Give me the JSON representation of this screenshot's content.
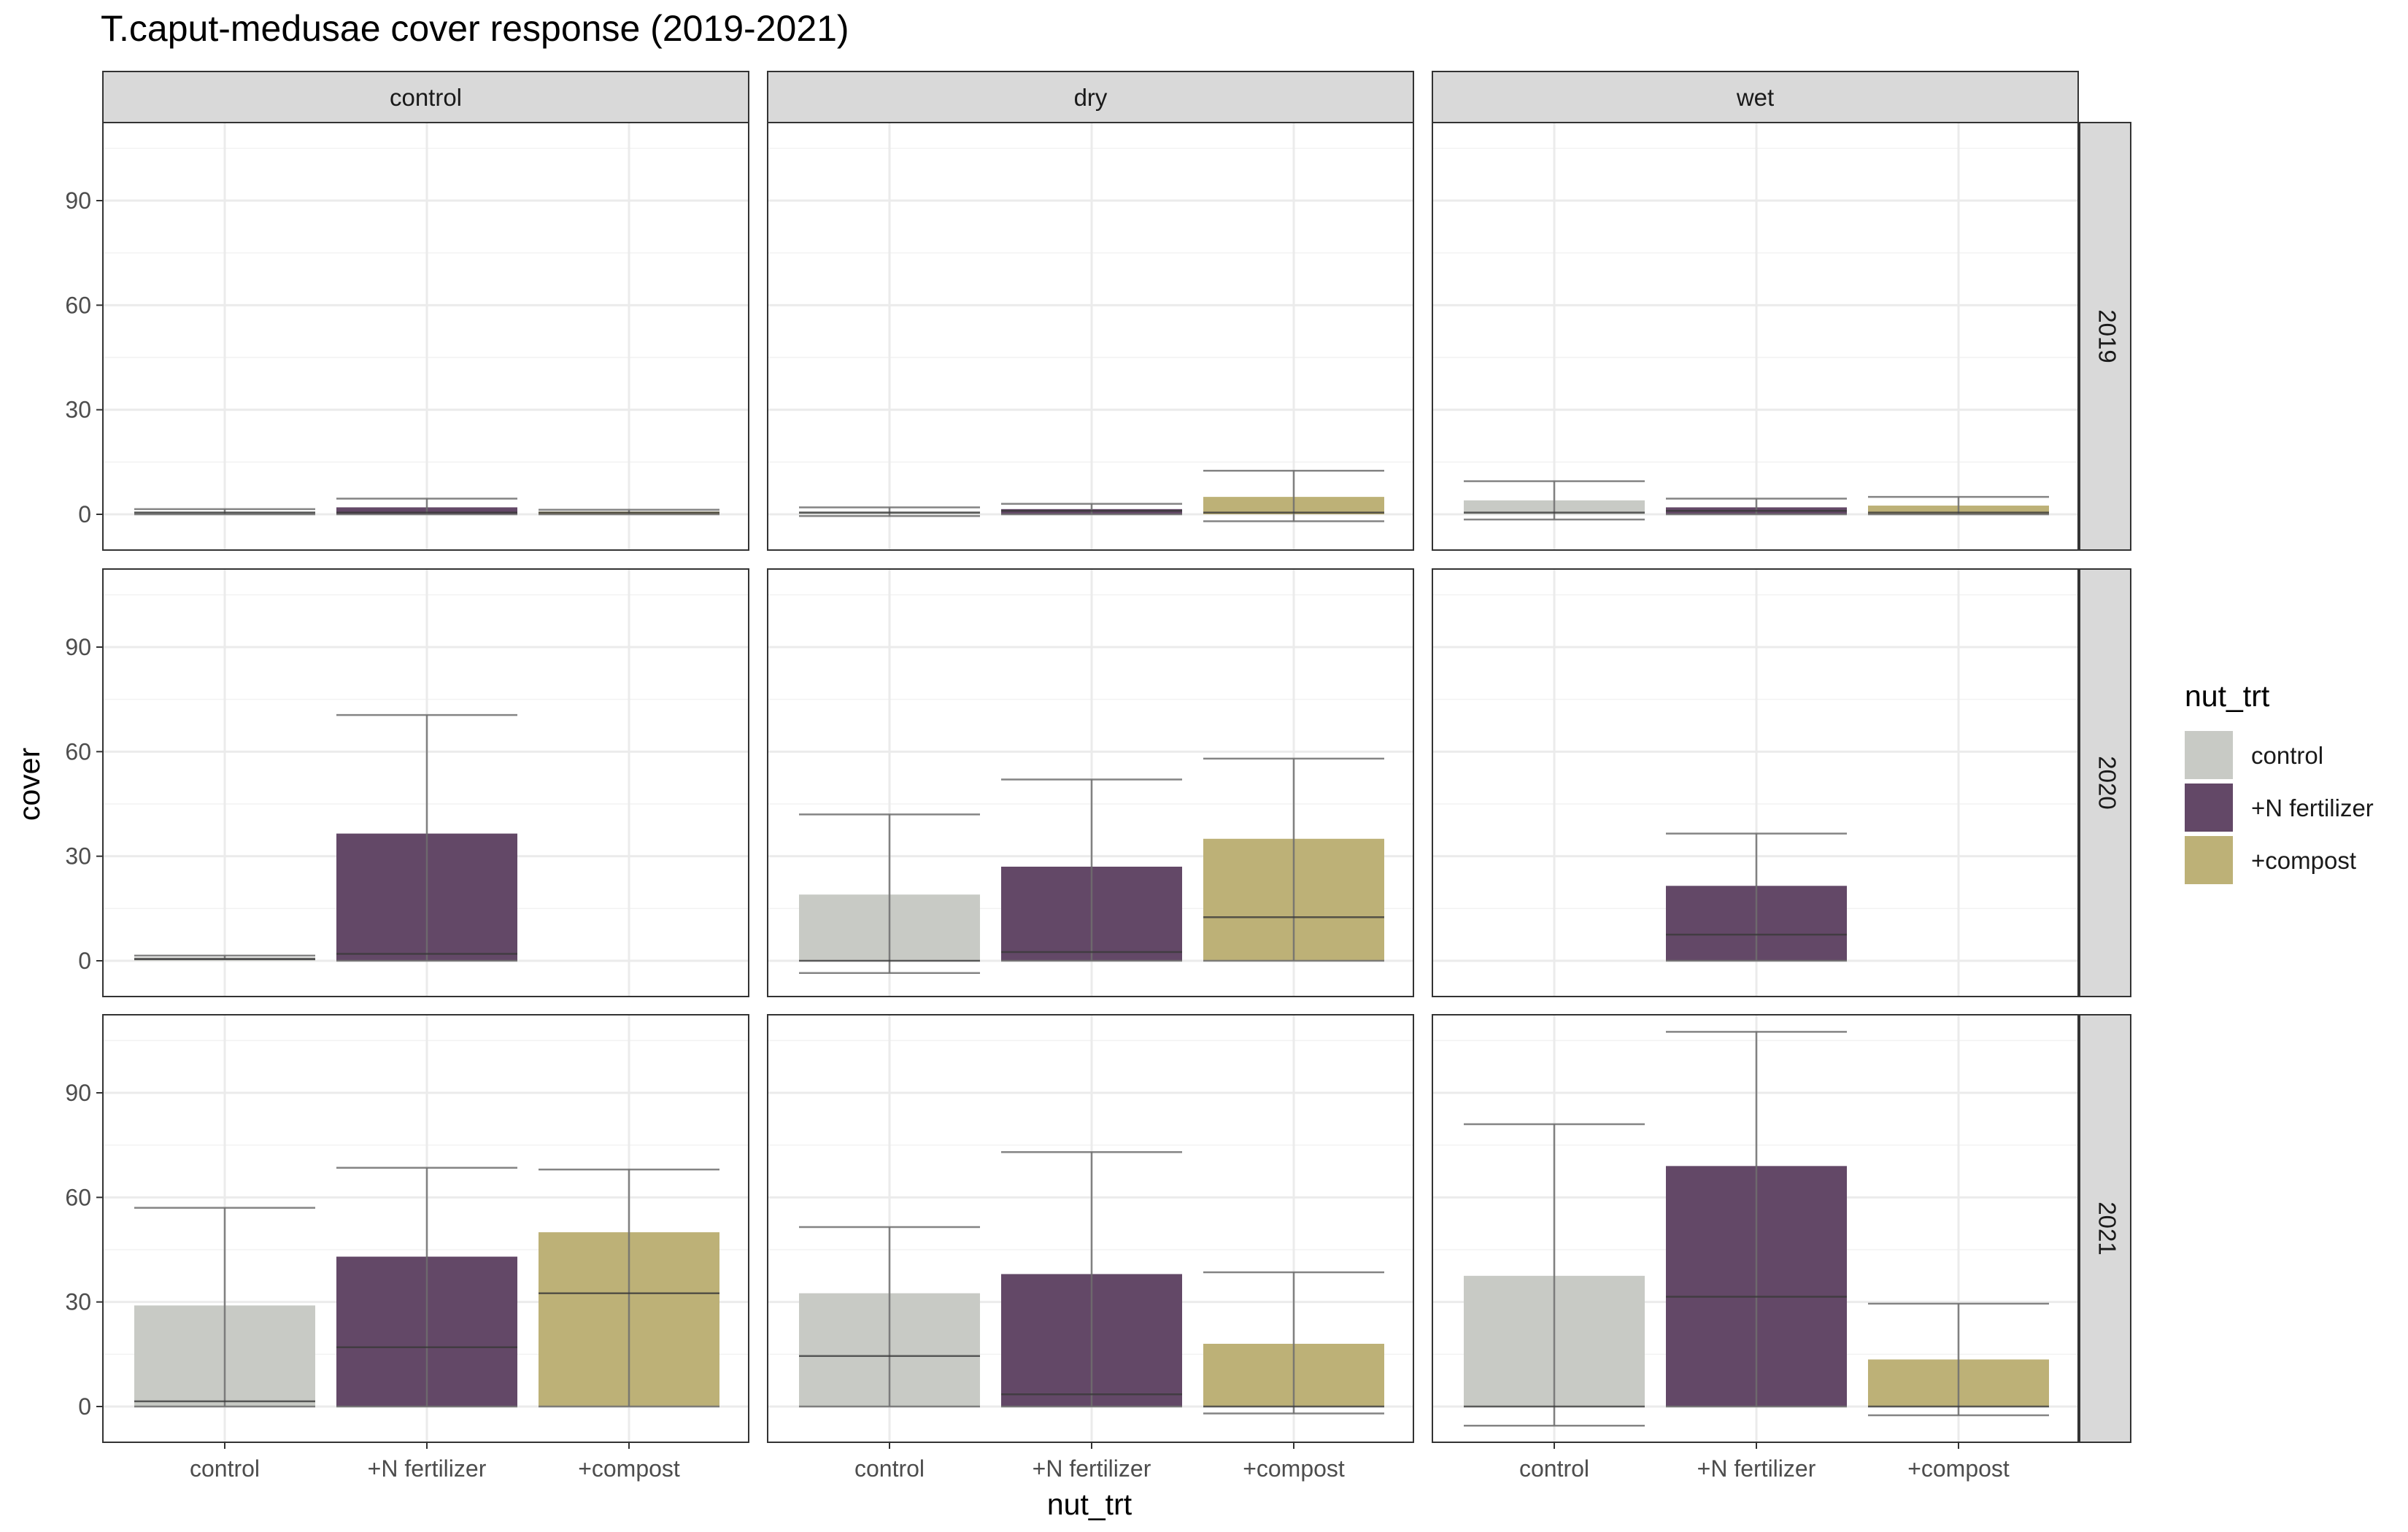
{
  "chart_data": {
    "type": "bar",
    "title": "T.caput-medusae cover response (2019-2021)",
    "xlabel": "nut_trt",
    "ylabel": "cover",
    "categories": [
      "control",
      "+N fertilizer",
      "+compost"
    ],
    "facet_cols": [
      "control",
      "dry",
      "wet"
    ],
    "facet_rows": [
      "2019",
      "2020",
      "2021"
    ],
    "yticks": [
      0,
      30,
      60,
      90
    ],
    "ylim": [
      -10,
      115
    ],
    "grid": true,
    "legend": {
      "title": "nut_trt",
      "placement": "right",
      "entries": [
        {
          "label": "control",
          "color": "#c8cac5"
        },
        {
          "label": "+N fertilizer",
          "color": "#634867"
        },
        {
          "label": "+compost",
          "color": "#bdb177"
        }
      ]
    },
    "panels": [
      {
        "year": "2019",
        "treatment": "control",
        "bars": [
          {
            "category": "control",
            "mean": 0.8,
            "median": 0.5,
            "lower": 0.0,
            "upper": 1.5
          },
          {
            "category": "+N fertilizer",
            "mean": 2.0,
            "median": 0.5,
            "lower": 0.0,
            "upper": 4.5
          },
          {
            "category": "+compost",
            "mean": 0.8,
            "median": 0.5,
            "lower": 0.0,
            "upper": 1.3
          }
        ]
      },
      {
        "year": "2019",
        "treatment": "dry",
        "bars": [
          {
            "category": "control",
            "mean": 0.8,
            "median": 0.5,
            "lower": -0.5,
            "upper": 2.0
          },
          {
            "category": "+N fertilizer",
            "mean": 1.5,
            "median": 1.0,
            "lower": 0.0,
            "upper": 3.0
          },
          {
            "category": "+compost",
            "mean": 5.0,
            "median": 0.5,
            "lower": -2.0,
            "upper": 12.5
          }
        ]
      },
      {
        "year": "2019",
        "treatment": "wet",
        "bars": [
          {
            "category": "control",
            "mean": 4.0,
            "median": 0.5,
            "lower": -1.5,
            "upper": 9.5
          },
          {
            "category": "+N fertilizer",
            "mean": 2.0,
            "median": 1.0,
            "lower": 0.0,
            "upper": 4.5
          },
          {
            "category": "+compost",
            "mean": 2.5,
            "median": 0.5,
            "lower": 0.0,
            "upper": 5.0
          }
        ]
      },
      {
        "year": "2020",
        "treatment": "control",
        "bars": [
          {
            "category": "control",
            "mean": 1.0,
            "median": 0.5,
            "lower": 0.5,
            "upper": 1.5
          },
          {
            "category": "+N fertilizer",
            "mean": 36.5,
            "median": 2.0,
            "lower": 0.0,
            "upper": 70.5
          }
        ]
      },
      {
        "year": "2020",
        "treatment": "dry",
        "bars": [
          {
            "category": "control",
            "mean": 19.0,
            "median": 0.0,
            "lower": -3.5,
            "upper": 42.0
          },
          {
            "category": "+N fertilizer",
            "mean": 27.0,
            "median": 2.5,
            "lower": 0.0,
            "upper": 52.0
          },
          {
            "category": "+compost",
            "mean": 35.0,
            "median": 12.5,
            "lower": 0.0,
            "upper": 58.0
          }
        ]
      },
      {
        "year": "2020",
        "treatment": "wet",
        "bars": [
          {
            "category": "+N fertilizer",
            "mean": 21.5,
            "median": 7.5,
            "lower": 0.0,
            "upper": 36.5
          }
        ]
      },
      {
        "year": "2021",
        "treatment": "control",
        "bars": [
          {
            "category": "control",
            "mean": 29.0,
            "median": 1.5,
            "lower": 0.0,
            "upper": 57.0
          },
          {
            "category": "+N fertilizer",
            "mean": 43.0,
            "median": 17.0,
            "lower": 0.0,
            "upper": 68.5
          },
          {
            "category": "+compost",
            "mean": 50.0,
            "median": 32.5,
            "lower": 0.0,
            "upper": 68.0
          }
        ]
      },
      {
        "year": "2021",
        "treatment": "dry",
        "bars": [
          {
            "category": "control",
            "mean": 32.5,
            "median": 14.5,
            "lower": 0.0,
            "upper": 51.5
          },
          {
            "category": "+N fertilizer",
            "mean": 38.0,
            "median": 3.5,
            "lower": 0.0,
            "upper": 73.0
          },
          {
            "category": "+compost",
            "mean": 18.0,
            "median": 0.0,
            "lower": -2.0,
            "upper": 38.5
          }
        ]
      },
      {
        "year": "2021",
        "treatment": "wet",
        "bars": [
          {
            "category": "control",
            "mean": 37.5,
            "median": 0.0,
            "lower": -5.5,
            "upper": 81.0
          },
          {
            "category": "+N fertilizer",
            "mean": 69.0,
            "median": 31.5,
            "lower": 0.0,
            "upper": 107.5
          },
          {
            "category": "+compost",
            "mean": 13.5,
            "median": 0.0,
            "lower": -2.5,
            "upper": 29.5
          }
        ]
      }
    ]
  }
}
